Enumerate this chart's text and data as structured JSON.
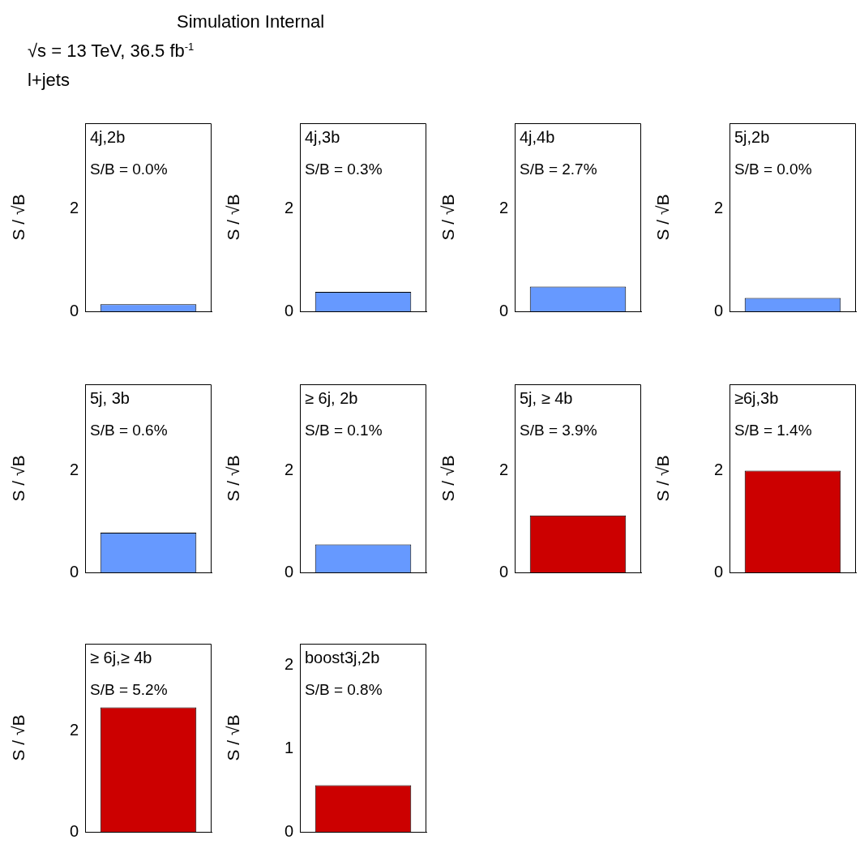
{
  "chart_data": [
    {
      "type": "other",
      "title": "Simulation Internal",
      "annotations": [
        "√s = 13 TeV, 36.5 fb$^{-1}$",
        "l+jets"
      ]
    },
    {
      "type": "bar",
      "title": "4j,2b",
      "annotations": [
        "S/B = 0.0%"
      ],
      "categories": [
        null
      ],
      "values": [
        0.14
      ],
      "color": "#6699ff",
      "ylabel": "S / √B",
      "ylim": [
        0,
        3.66
      ],
      "yticks": [
        0,
        2
      ]
    },
    {
      "type": "bar",
      "title": "4j,3b",
      "annotations": [
        "S/B = 0.3%"
      ],
      "categories": [
        null
      ],
      "values": [
        0.38
      ],
      "color": "#6699ff",
      "ylabel": "S / √B",
      "ylim": [
        0,
        3.66
      ],
      "yticks": [
        0,
        2
      ]
    },
    {
      "type": "bar",
      "title": "4j,4b",
      "annotations": [
        "S/B = 2.7%"
      ],
      "categories": [
        null
      ],
      "values": [
        0.48
      ],
      "color": "#6699ff",
      "ylabel": "S / √B",
      "ylim": [
        0,
        3.66
      ],
      "yticks": [
        0,
        2
      ]
    },
    {
      "type": "bar",
      "title": "5j,2b",
      "annotations": [
        "S/B = 0.0%"
      ],
      "categories": [
        null
      ],
      "values": [
        0.26
      ],
      "color": "#6699ff",
      "ylabel": "S / √B",
      "ylim": [
        0,
        3.66
      ],
      "yticks": [
        0,
        2
      ]
    },
    {
      "type": "bar",
      "title": "5j, 3b",
      "annotations": [
        "S/B = 0.6%"
      ],
      "categories": [
        null
      ],
      "values": [
        0.78
      ],
      "color": "#6699ff",
      "ylabel": "S / √B",
      "ylim": [
        0,
        3.7
      ],
      "yticks": [
        0,
        2
      ]
    },
    {
      "type": "bar",
      "title": "≥ 6j, 2b",
      "annotations": [
        "S/B = 0.1%"
      ],
      "categories": [
        null
      ],
      "values": [
        0.55
      ],
      "color": "#6699ff",
      "ylabel": "S / √B",
      "ylim": [
        0,
        3.7
      ],
      "yticks": [
        0,
        2
      ]
    },
    {
      "type": "bar",
      "title": "5j, ≥ 4b",
      "annotations": [
        "S/B = 3.9%"
      ],
      "categories": [
        null
      ],
      "values": [
        1.12
      ],
      "color": "#cc0000",
      "ylabel": "S / √B",
      "ylim": [
        0,
        3.7
      ],
      "yticks": [
        0,
        2
      ]
    },
    {
      "type": "bar",
      "title": "≥6j,3b",
      "annotations": [
        "S/B = 1.4%"
      ],
      "categories": [
        null
      ],
      "values": [
        2.0
      ],
      "color": "#cc0000",
      "ylabel": "S / √B",
      "ylim": [
        0,
        3.7
      ],
      "yticks": [
        0,
        2
      ]
    },
    {
      "type": "bar",
      "title": "≥ 6j,≥ 4b",
      "annotations": [
        "S/B = 5.2%"
      ],
      "categories": [
        null
      ],
      "values": [
        2.46
      ],
      "color": "#cc0000",
      "ylabel": "S / √B",
      "ylim": [
        0,
        3.72
      ],
      "yticks": [
        0,
        2
      ]
    },
    {
      "type": "bar",
      "title": "boost3j,2b",
      "annotations": [
        "S/B = 0.8%"
      ],
      "categories": [
        null
      ],
      "values": [
        0.56
      ],
      "color": "#cc0000",
      "ylabel": "S / √B",
      "ylim": [
        0,
        2.26
      ],
      "yticks": [
        0,
        1,
        2
      ]
    }
  ]
}
